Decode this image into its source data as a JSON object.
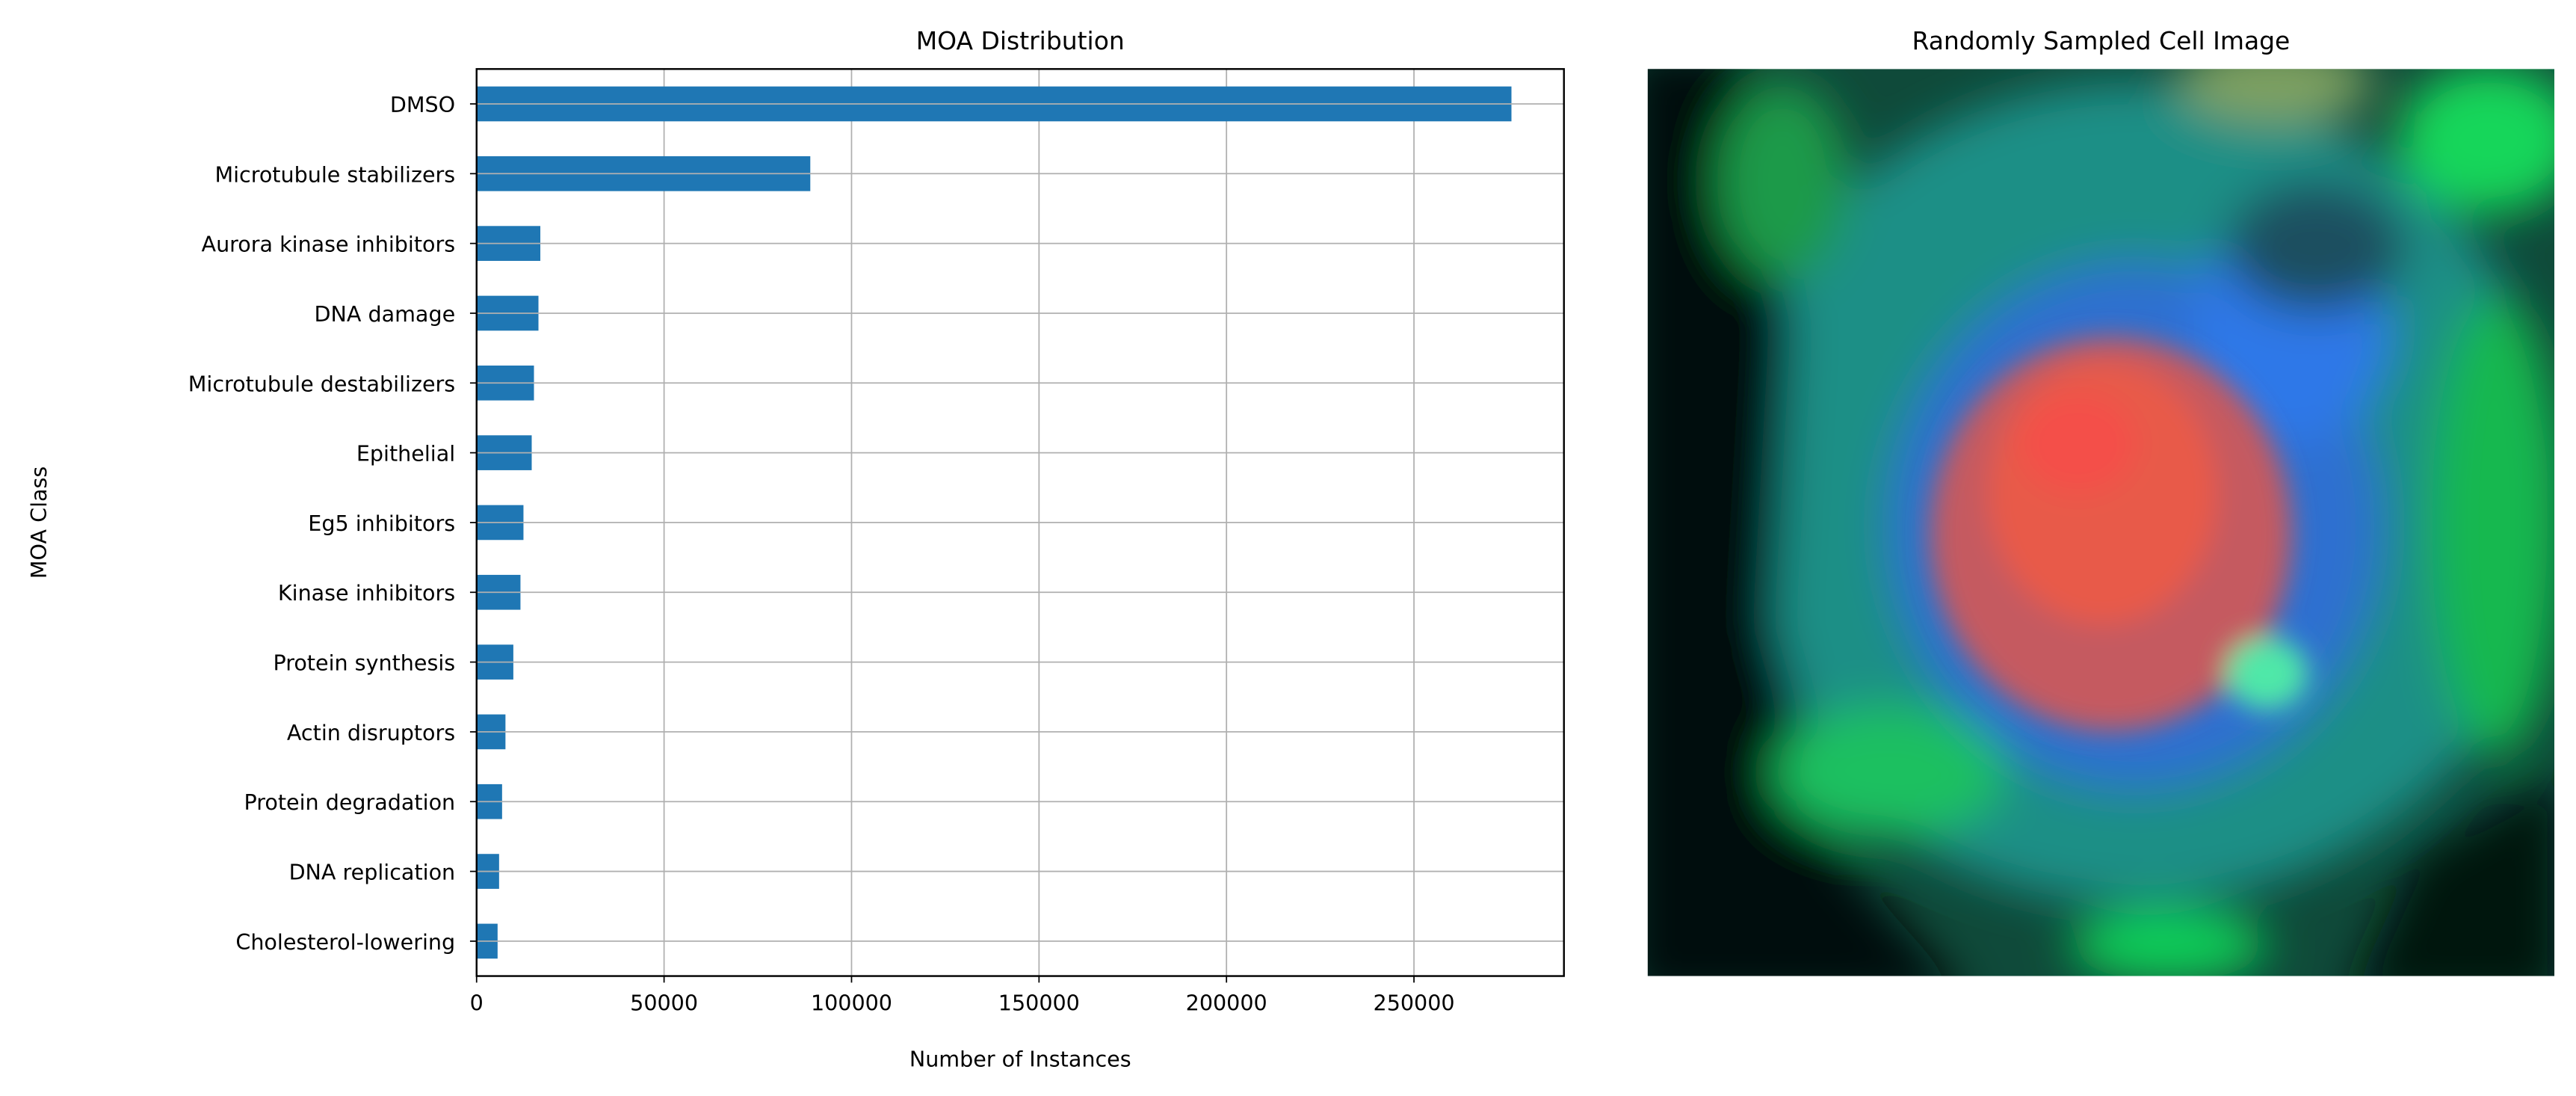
{
  "chart_data": [
    {
      "type": "bar",
      "orientation": "horizontal",
      "title": "MOA Distribution",
      "xlabel": "Number of Instances",
      "ylabel": "MOA Class",
      "categories": [
        "DMSO",
        "Microtubule stabilizers",
        "Aurora kinase inhibitors",
        "DNA damage",
        "Microtubule destabilizers",
        "Epithelial",
        "Eg5 inhibitors",
        "Kinase inhibitors",
        "Protein synthesis",
        "Actin disruptors",
        "Protein degradation",
        "DNA replication",
        "Cholesterol-lowering"
      ],
      "values": [
        276000,
        89000,
        17000,
        16500,
        15300,
        14700,
        12500,
        11700,
        9800,
        7700,
        6800,
        6000,
        5600
      ],
      "xlim": [
        0,
        290000
      ],
      "xticks": [
        0,
        50000,
        100000,
        150000,
        200000,
        250000
      ],
      "xtick_labels": [
        "0",
        "50000",
        "100000",
        "150000",
        "200000",
        "250000"
      ],
      "grid": true,
      "bar_color": "#1f77b4"
    }
  ],
  "image_panel": {
    "title": "Randomly Sampled Cell Image"
  }
}
